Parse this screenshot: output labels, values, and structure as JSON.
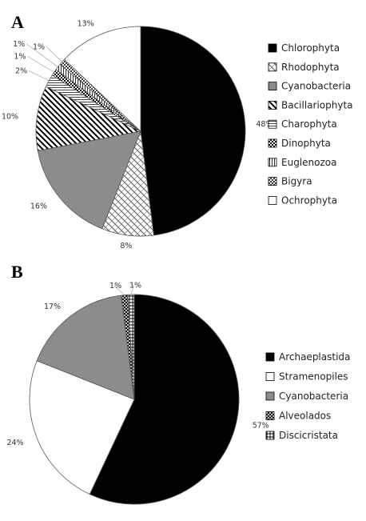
{
  "chart_data": [
    {
      "type": "pie",
      "panel_label": "A",
      "title": "",
      "legend_placement": "right",
      "labels": [
        "Chlorophyta",
        "Rhodophyta",
        "Cyanobacteria",
        "Bacillariophyta",
        "Charophyta",
        "Dinophyta",
        "Euglenozoa",
        "Bigyra",
        "Ochrophyta"
      ],
      "values": [
        48,
        8,
        16,
        10,
        2,
        1,
        1,
        1,
        13
      ],
      "value_labels": [
        "48%",
        "8%",
        "16%",
        "10%",
        "2%",
        "1%",
        "1%",
        "1%",
        "13%"
      ],
      "fills": [
        "black",
        "brick",
        "gray",
        "diag-thick",
        "horiz-lines",
        "dino",
        "vert-lines",
        "checker",
        "white"
      ]
    },
    {
      "type": "pie",
      "panel_label": "B",
      "title": "",
      "legend_placement": "right",
      "labels": [
        "Archaeplastida",
        "Stramenopiles",
        "Cyanobacteria",
        "Alveolados",
        "Discicristata"
      ],
      "values": [
        57,
        24,
        17,
        1,
        1
      ],
      "value_labels": [
        "57%",
        "24%",
        "17%",
        "1%",
        "1%"
      ],
      "fills": [
        "black",
        "white",
        "gray",
        "alveo",
        "grid"
      ]
    }
  ]
}
